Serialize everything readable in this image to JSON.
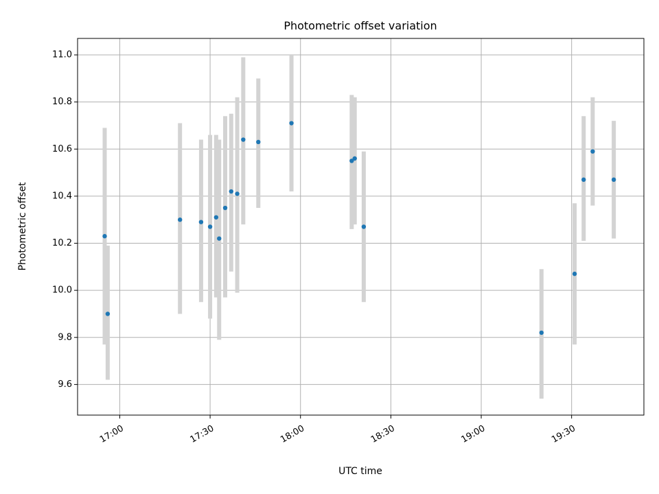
{
  "chart_data": {
    "type": "scatter",
    "title": "Photometric offset variation",
    "xlabel": "UTC time",
    "ylabel": "Photometric offset",
    "x_axis_type": "time",
    "xlim": [
      "16:46",
      "19:54"
    ],
    "ylim": [
      9.47,
      11.07
    ],
    "x_ticks": [
      "17:00",
      "17:30",
      "18:00",
      "18:30",
      "19:00",
      "19:30"
    ],
    "y_ticks": [
      "9.6",
      "9.8",
      "10.0",
      "10.2",
      "10.4",
      "10.6",
      "10.8",
      "11.0"
    ],
    "grid": true,
    "marker_color": "#1f77b4",
    "errorbar_color": "#d3d3d3",
    "series": [
      {
        "points": [
          {
            "x": "16:55",
            "y": 10.23,
            "ylow": 9.77,
            "yhigh": 10.69
          },
          {
            "x": "16:56",
            "y": 9.9,
            "ylow": 9.62,
            "yhigh": 10.19
          },
          {
            "x": "17:20",
            "y": 10.3,
            "ylow": 9.9,
            "yhigh": 10.71
          },
          {
            "x": "17:27",
            "y": 10.29,
            "ylow": 9.95,
            "yhigh": 10.64
          },
          {
            "x": "17:30",
            "y": 10.27,
            "ylow": 9.88,
            "yhigh": 10.66
          },
          {
            "x": "17:32",
            "y": 10.31,
            "ylow": 9.97,
            "yhigh": 10.66
          },
          {
            "x": "17:33",
            "y": 10.22,
            "ylow": 9.79,
            "yhigh": 10.64
          },
          {
            "x": "17:35",
            "y": 10.35,
            "ylow": 9.97,
            "yhigh": 10.74
          },
          {
            "x": "17:37",
            "y": 10.42,
            "ylow": 10.08,
            "yhigh": 10.75
          },
          {
            "x": "17:39",
            "y": 10.41,
            "ylow": 9.99,
            "yhigh": 10.82
          },
          {
            "x": "17:41",
            "y": 10.64,
            "ylow": 10.28,
            "yhigh": 10.99
          },
          {
            "x": "17:46",
            "y": 10.63,
            "ylow": 10.35,
            "yhigh": 10.9
          },
          {
            "x": "17:57",
            "y": 10.71,
            "ylow": 10.42,
            "yhigh": 11.0
          },
          {
            "x": "18:17",
            "y": 10.55,
            "ylow": 10.26,
            "yhigh": 10.83
          },
          {
            "x": "18:18",
            "y": 10.56,
            "ylow": 10.28,
            "yhigh": 10.82
          },
          {
            "x": "18:21",
            "y": 10.27,
            "ylow": 9.95,
            "yhigh": 10.59
          },
          {
            "x": "19:20",
            "y": 9.82,
            "ylow": 9.54,
            "yhigh": 10.09
          },
          {
            "x": "19:31",
            "y": 10.07,
            "ylow": 9.77,
            "yhigh": 10.37
          },
          {
            "x": "19:34",
            "y": 10.47,
            "ylow": 10.21,
            "yhigh": 10.74
          },
          {
            "x": "19:37",
            "y": 10.59,
            "ylow": 10.36,
            "yhigh": 10.82
          },
          {
            "x": "19:44",
            "y": 10.47,
            "ylow": 10.22,
            "yhigh": 10.72
          }
        ]
      }
    ]
  }
}
